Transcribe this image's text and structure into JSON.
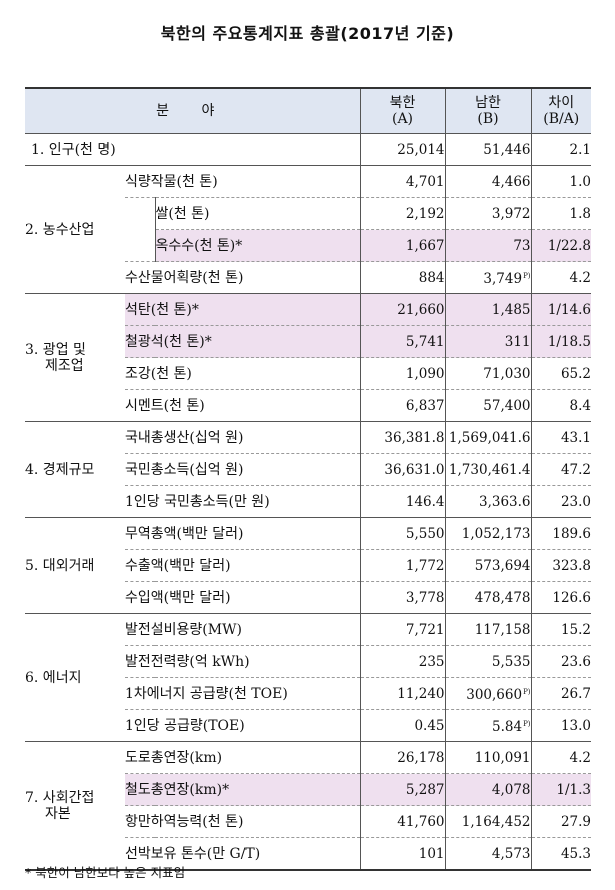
{
  "title": "북한의 주요통계지표 총괄(2017년 기준)",
  "header": {
    "field": "분 야",
    "nk_line1": "북한",
    "nk_line2": "(A)",
    "sk_line1": "남한",
    "sk_line2": "(B)",
    "diff_line1": "차이",
    "diff_line2": "(B/A)"
  },
  "rows": {
    "r0": {
      "cat": "1. 인구(천 명)",
      "nk": "25,014",
      "sk": "51,446",
      "diff": "2.1"
    },
    "c2_line1": "2. 농수산업",
    "r1": {
      "item": "식량작물(천 톤)",
      "nk": "4,701",
      "sk": "4,466",
      "diff": "1.0"
    },
    "r2": {
      "item": "쌀(천 톤)",
      "nk": "2,192",
      "sk": "3,972",
      "diff": "1.8"
    },
    "r3": {
      "item": "옥수수(천 톤)*",
      "nk": "1,667",
      "sk": "73",
      "diff": "1/22.8"
    },
    "r4": {
      "item": "수산물어획량(천 톤)",
      "nk": "884",
      "sk": "3,749",
      "sk_mark": "P)",
      "diff": "4.2"
    },
    "c3_line1": "3. 광업 및",
    "c3_line2": "제조업",
    "r5": {
      "item": "석탄(천 톤)*",
      "nk": "21,660",
      "sk": "1,485",
      "diff": "1/14.6"
    },
    "r6": {
      "item": "철광석(천 톤)*",
      "nk": "5,741",
      "sk": "311",
      "diff": "1/18.5"
    },
    "r7": {
      "item": "조강(천 톤)",
      "nk": "1,090",
      "sk": "71,030",
      "diff": "65.2"
    },
    "r8": {
      "item": "시멘트(천 톤)",
      "nk": "6,837",
      "sk": "57,400",
      "diff": "8.4"
    },
    "c4_line1": "4. 경제규모",
    "r9": {
      "item": "국내총생산(십억 원)",
      "nk": "36,381.8",
      "sk": "1,569,041.6",
      "diff": "43.1"
    },
    "r10": {
      "item": "국민총소득(십억 원)",
      "nk": "36,631.0",
      "sk": "1,730,461.4",
      "diff": "47.2"
    },
    "r11": {
      "item": "1인당 국민총소득(만 원)",
      "nk": "146.4",
      "sk": "3,363.6",
      "diff": "23.0"
    },
    "c5_line1": "5. 대외거래",
    "r12": {
      "item": "무역총액(백만 달러)",
      "nk": "5,550",
      "sk": "1,052,173",
      "diff": "189.6"
    },
    "r13": {
      "item": "수출액(백만 달러)",
      "nk": "1,772",
      "sk": "573,694",
      "diff": "323.8"
    },
    "r14": {
      "item": "수입액(백만 달러)",
      "nk": "3,778",
      "sk": "478,478",
      "diff": "126.6"
    },
    "c6_line1": "6. 에너지",
    "r15": {
      "item": "발전설비용량(MW)",
      "nk": "7,721",
      "sk": "117,158",
      "diff": "15.2"
    },
    "r16": {
      "item": "발전전력량(억 kWh)",
      "nk": "235",
      "sk": "5,535",
      "diff": "23.6"
    },
    "r17": {
      "item": "1차에너지 공급량(천 TOE)",
      "nk": "11,240",
      "sk": "300,660",
      "sk_mark": "P)",
      "diff": "26.7"
    },
    "r18": {
      "item": "1인당 공급량(TOE)",
      "nk": "0.45",
      "sk": "5.84",
      "sk_mark": "P)",
      "diff": "13.0"
    },
    "c7_line1": "7. 사회간접",
    "c7_line2": "자본",
    "r19": {
      "item": "도로총연장(km)",
      "nk": "26,178",
      "sk": "110,091",
      "diff": "4.2"
    },
    "r20": {
      "item": "철도총연장(km)*",
      "nk": "5,287",
      "sk": "4,078",
      "diff": "1/1.3"
    },
    "r21": {
      "item": "항만하역능력(천 톤)",
      "nk": "41,760",
      "sk": "1,164,452",
      "diff": "27.9"
    },
    "r22": {
      "item": "선박보유 톤수(만 G/T)",
      "nk": "101",
      "sk": "4,573",
      "diff": "45.3"
    }
  },
  "footnote": "* 북한이 남한보다 높은 지표임",
  "colors": {
    "header_bg": "#dfe6f2",
    "highlight_bg": "#efe0ef"
  }
}
